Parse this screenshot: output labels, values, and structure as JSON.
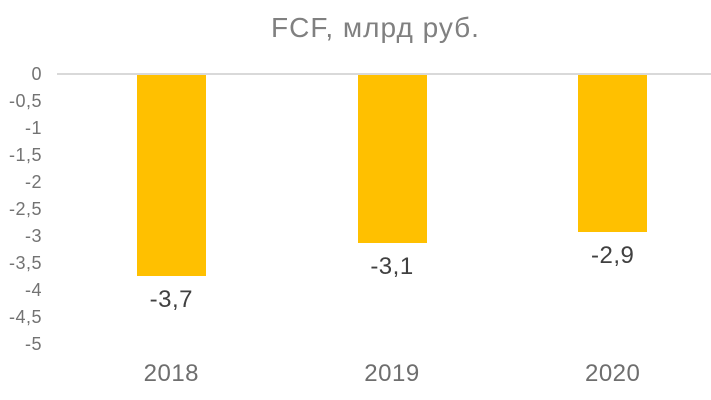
{
  "chart_data": {
    "type": "bar",
    "title": "FCF, млрд руб.",
    "categories": [
      "2018",
      "2019",
      "2020"
    ],
    "values": [
      -3.7,
      -3.1,
      -2.9
    ],
    "value_labels": [
      "-3,7",
      "-3,1",
      "-2,9"
    ],
    "xlabel": "",
    "ylabel": "",
    "ylim": [
      -5,
      0
    ],
    "y_tick_step": 0.5,
    "y_tick_labels": [
      "0",
      "-0,5",
      "-1",
      "-1,5",
      "-2",
      "-2,5",
      "-3",
      "-3,5",
      "-4",
      "-4,5",
      "-5"
    ],
    "grid": false,
    "legend": "none",
    "bar_color": "#FFC000",
    "zero_line_color": "#D9D9D9",
    "title_color": "#808080",
    "axis_text_color": "#737373",
    "data_label_color": "#404040",
    "background_color": "#FFFFFF"
  }
}
